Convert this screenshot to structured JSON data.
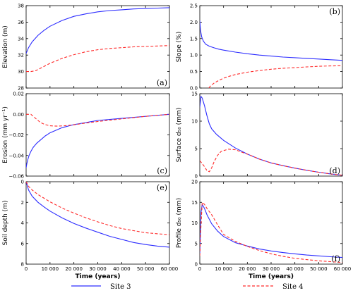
{
  "legend": {
    "site3": "Site 3",
    "site4": "Site 4"
  },
  "colors": {
    "site3": "#2d2dff",
    "site4": "#ff2a2a"
  },
  "chart_data": [
    {
      "type": "line",
      "panel_label": "(a)",
      "ylabel": "Elevation (m)",
      "xlabel": "",
      "xlim": [
        0,
        60000
      ],
      "ylim": [
        28,
        38
      ],
      "xticks": [],
      "yticks": [
        28,
        30,
        32,
        34,
        36,
        38
      ],
      "yticklabels": [
        "28",
        "30",
        "32",
        "34",
        "36",
        "38"
      ],
      "series": [
        {
          "name": "Site 3",
          "style": "solid",
          "x": [
            0,
            1000,
            2500,
            5000,
            7500,
            10000,
            15000,
            20000,
            25000,
            30000,
            35000,
            40000,
            45000,
            50000,
            55000,
            60000
          ],
          "y": [
            32.2,
            32.9,
            33.6,
            34.4,
            35.0,
            35.5,
            36.2,
            36.7,
            37.0,
            37.25,
            37.4,
            37.5,
            37.6,
            37.65,
            37.7,
            37.75
          ]
        },
        {
          "name": "Site 4",
          "style": "dashed",
          "x": [
            0,
            2000,
            4000,
            6000,
            8000,
            10000,
            15000,
            20000,
            25000,
            30000,
            35000,
            40000,
            45000,
            50000,
            55000,
            60000
          ],
          "y": [
            30.0,
            30.0,
            30.1,
            30.4,
            30.7,
            31.0,
            31.6,
            32.05,
            32.4,
            32.65,
            32.8,
            32.9,
            33.0,
            33.05,
            33.1,
            33.15
          ]
        }
      ]
    },
    {
      "type": "line",
      "panel_label": "(b)",
      "ylabel": "Slope (%)",
      "xlabel": "",
      "xlim": [
        0,
        60000
      ],
      "ylim": [
        0,
        2.5
      ],
      "xticks": [],
      "yticks": [
        0,
        0.5,
        1.0,
        1.5,
        2.0,
        2.5
      ],
      "yticklabels": [
        "0.0",
        "0.5",
        "1.0",
        "1.5",
        "2.0",
        "2.5"
      ],
      "series": [
        {
          "name": "Site 3",
          "style": "solid",
          "x": [
            0,
            300,
            800,
            1500,
            2500,
            4000,
            6000,
            8000,
            10000,
            15000,
            20000,
            25000,
            30000,
            35000,
            40000,
            45000,
            50000,
            55000,
            60000
          ],
          "y": [
            2.05,
            1.75,
            1.55,
            1.42,
            1.33,
            1.27,
            1.22,
            1.18,
            1.15,
            1.09,
            1.04,
            1.0,
            0.97,
            0.94,
            0.92,
            0.9,
            0.88,
            0.86,
            0.84
          ]
        },
        {
          "name": "Site 4",
          "style": "dashed",
          "x": [
            3800,
            4500,
            6000,
            8000,
            10000,
            12500,
            15000,
            20000,
            25000,
            30000,
            35000,
            40000,
            45000,
            50000,
            55000,
            60000
          ],
          "y": [
            0.0,
            0.06,
            0.15,
            0.23,
            0.3,
            0.36,
            0.41,
            0.48,
            0.53,
            0.57,
            0.6,
            0.62,
            0.64,
            0.66,
            0.67,
            0.68
          ]
        }
      ]
    },
    {
      "type": "line",
      "panel_label": "(c)",
      "ylabel": "Erosion (mm yr⁻¹)",
      "xlabel": "",
      "xlim": [
        0,
        60000
      ],
      "ylim": [
        -0.06,
        0.02
      ],
      "xticks": [],
      "yticks": [
        -0.06,
        -0.04,
        -0.02,
        0.0,
        0.02
      ],
      "yticklabels": [
        "−0.06",
        "−0.04",
        "−0.02",
        "0.00",
        "0.02"
      ],
      "series": [
        {
          "name": "Site 3",
          "style": "solid",
          "x": [
            0,
            300,
            700,
            1200,
            2000,
            3000,
            4500,
            6000,
            8000,
            10000,
            15000,
            20000,
            25000,
            30000,
            40000,
            50000,
            60000
          ],
          "y": [
            -0.052,
            -0.048,
            -0.044,
            -0.04,
            -0.036,
            -0.032,
            -0.028,
            -0.025,
            -0.021,
            -0.018,
            -0.013,
            -0.01,
            -0.008,
            -0.006,
            -0.004,
            -0.002,
            0.0
          ]
        },
        {
          "name": "Site 4",
          "style": "dashed",
          "x": [
            0,
            2000,
            3000,
            4500,
            6000,
            8000,
            10000,
            13000,
            16000,
            20000,
            25000,
            30000,
            40000,
            50000,
            60000
          ],
          "y": [
            0.0,
            0.0,
            -0.002,
            -0.005,
            -0.008,
            -0.01,
            -0.0112,
            -0.0115,
            -0.0112,
            -0.0102,
            -0.0085,
            -0.007,
            -0.0045,
            -0.002,
            0.0
          ]
        }
      ]
    },
    {
      "type": "line",
      "panel_label": "(d)",
      "ylabel": "Surface d₅₀ (mm)",
      "xlabel": "",
      "xlim": [
        0,
        60000
      ],
      "ylim": [
        0,
        15
      ],
      "xticks": [],
      "yticks": [
        0,
        5,
        10,
        15
      ],
      "yticklabels": [
        "0",
        "5",
        "10",
        "15"
      ],
      "series": [
        {
          "name": "Site 3",
          "style": "solid",
          "x": [
            0,
            500,
            1000,
            2000,
            3000,
            4000,
            5000,
            7000,
            10000,
            15000,
            20000,
            25000,
            30000,
            35000,
            40000,
            45000,
            50000,
            55000,
            60000
          ],
          "y": [
            12.5,
            14.5,
            14.2,
            12.8,
            11.0,
            9.5,
            8.6,
            7.6,
            6.5,
            5.1,
            4.0,
            3.1,
            2.4,
            1.9,
            1.45,
            1.05,
            0.7,
            0.4,
            0.15
          ]
        },
        {
          "name": "Site 4",
          "style": "dashed",
          "x": [
            0,
            800,
            2000,
            3000,
            4000,
            5000,
            6000,
            7500,
            9000,
            12000,
            15000,
            18000,
            20000,
            25000,
            30000,
            35000,
            40000,
            45000,
            50000,
            55000,
            60000
          ],
          "y": [
            2.8,
            2.4,
            1.7,
            1.0,
            0.8,
            1.5,
            2.6,
            3.8,
            4.5,
            4.9,
            4.8,
            4.3,
            4.0,
            3.1,
            2.4,
            1.9,
            1.45,
            1.05,
            0.7,
            0.4,
            0.15
          ]
        }
      ]
    },
    {
      "type": "line",
      "panel_label": "(e)",
      "ylabel": "Soil depth (m)",
      "xlabel": "Time (years)",
      "xlim": [
        0,
        60000
      ],
      "ylim": [
        8,
        0
      ],
      "inverted_y": true,
      "xticks": [
        0,
        10000,
        20000,
        30000,
        40000,
        50000,
        60000
      ],
      "xticklabels": [
        "0",
        "10 000",
        "20 000",
        "30 000",
        "40 000",
        "50 000",
        "60 000"
      ],
      "yticks": [
        0,
        2,
        4,
        6,
        8
      ],
      "yticklabels": [
        "0",
        "2",
        "4",
        "6",
        "8"
      ],
      "series": [
        {
          "name": "Site 3",
          "style": "solid",
          "x": [
            0,
            1000,
            2500,
            5000,
            7500,
            10000,
            15000,
            20000,
            25000,
            30000,
            35000,
            40000,
            45000,
            50000,
            55000,
            60000
          ],
          "y": [
            0.0,
            0.8,
            1.4,
            2.0,
            2.45,
            2.85,
            3.5,
            4.05,
            4.5,
            4.9,
            5.3,
            5.6,
            5.9,
            6.1,
            6.25,
            6.35
          ]
        },
        {
          "name": "Site 4",
          "style": "dashed",
          "x": [
            0,
            1000,
            2500,
            5000,
            7500,
            10000,
            15000,
            20000,
            25000,
            30000,
            35000,
            40000,
            45000,
            50000,
            55000,
            60000
          ],
          "y": [
            0.0,
            0.45,
            0.8,
            1.25,
            1.6,
            1.95,
            2.55,
            3.05,
            3.5,
            3.9,
            4.25,
            4.55,
            4.75,
            4.95,
            5.05,
            5.15
          ]
        }
      ]
    },
    {
      "type": "line",
      "panel_label": "(f)",
      "ylabel": "Profile d₅₀ (mm)",
      "xlabel": "Time (years)",
      "xlim": [
        0,
        60000
      ],
      "ylim": [
        0,
        20
      ],
      "xticks": [
        0,
        10000,
        20000,
        30000,
        40000,
        50000,
        60000
      ],
      "xticklabels": [
        "0",
        "10 000",
        "20 000",
        "30 000",
        "40 000",
        "50 000",
        "60 000"
      ],
      "yticks": [
        0,
        5,
        10,
        15,
        20
      ],
      "yticklabels": [
        "0",
        "5",
        "10",
        "15",
        "20"
      ],
      "series": [
        {
          "name": "Site 3",
          "style": "solid",
          "x": [
            0,
            500,
            1000,
            2000,
            3000,
            5000,
            7500,
            10000,
            15000,
            20000,
            25000,
            30000,
            35000,
            40000,
            45000,
            50000,
            55000,
            60000
          ],
          "y": [
            2.5,
            12.5,
            14.5,
            13.5,
            12.0,
            9.8,
            8.0,
            6.7,
            5.2,
            4.4,
            3.7,
            3.2,
            2.8,
            2.5,
            2.2,
            2.0,
            1.8,
            1.6
          ]
        },
        {
          "name": "Site 4",
          "style": "dashed",
          "x": [
            0,
            400,
            1000,
            2000,
            3000,
            5000,
            7500,
            10000,
            15000,
            20000,
            25000,
            30000,
            35000,
            40000,
            45000,
            50000,
            55000,
            60000
          ],
          "y": [
            2.0,
            8.0,
            15.0,
            14.5,
            13.5,
            12.0,
            9.5,
            7.2,
            5.5,
            4.3,
            3.3,
            2.5,
            1.9,
            1.4,
            1.1,
            0.8,
            0.6,
            0.4
          ]
        }
      ]
    }
  ]
}
